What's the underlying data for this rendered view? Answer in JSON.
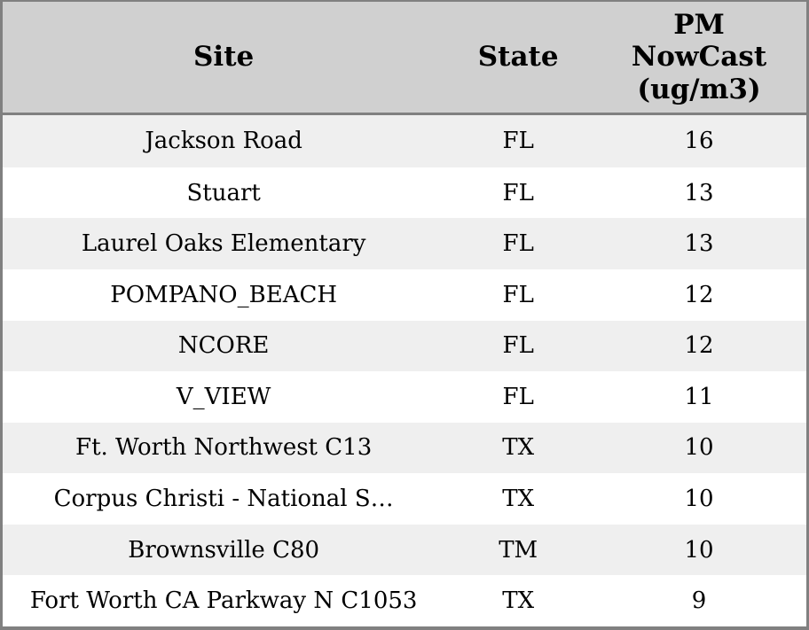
{
  "colors": {
    "header_bg": "#d0d0d0",
    "row_alt_bg": "#efefef",
    "row_bg": "#ffffff",
    "border": "#808080",
    "text": "#000000"
  },
  "chart_data": {
    "type": "table",
    "columns": [
      "Site",
      "State",
      "PM NowCast (ug/m3)"
    ],
    "rows": [
      [
        "Jackson Road",
        "FL",
        16
      ],
      [
        "Stuart",
        "FL",
        13
      ],
      [
        "Laurel Oaks Elementary",
        "FL",
        13
      ],
      [
        "POMPANO_BEACH",
        "FL",
        12
      ],
      [
        "NCORE",
        "FL",
        12
      ],
      [
        "V_VIEW",
        "FL",
        11
      ],
      [
        "Ft. Worth Northwest C13",
        "TX",
        10
      ],
      [
        "Corpus Christi - National S…",
        "TX",
        10
      ],
      [
        "Brownsville C80",
        "TM",
        10
      ],
      [
        "Fort Worth CA Parkway N C1053",
        "TX",
        9
      ]
    ]
  }
}
